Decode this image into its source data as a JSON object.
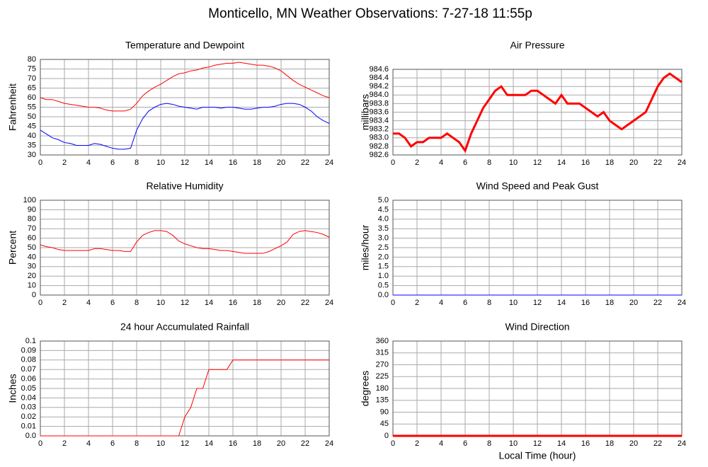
{
  "title": "Monticello, MN Weather Observations: 7-27-18 11:55p",
  "chart_data": [
    {
      "type": "line",
      "title": "Temperature and Dewpoint",
      "ylabel": "Fahrenheit",
      "x": [
        0,
        0.5,
        1,
        1.5,
        2,
        2.5,
        3,
        3.5,
        4,
        4.5,
        5,
        5.5,
        6,
        6.5,
        7,
        7.5,
        8,
        8.5,
        9,
        9.5,
        10,
        10.5,
        11,
        11.5,
        12,
        12.5,
        13,
        13.5,
        14,
        14.5,
        15,
        15.5,
        16,
        16.5,
        17,
        17.5,
        18,
        18.5,
        19,
        19.5,
        20,
        20.5,
        21,
        21.5,
        22,
        22.5,
        23,
        23.5,
        24
      ],
      "series": [
        {
          "color": "#ff0000",
          "values": [
            60,
            59,
            59,
            58,
            57,
            56.5,
            56,
            55.5,
            55,
            55,
            54.5,
            53.5,
            53,
            53,
            53,
            54,
            57,
            61,
            63.5,
            65.5,
            67,
            69,
            71,
            72.5,
            73,
            74,
            74.5,
            75.5,
            76,
            77,
            77.5,
            78,
            78,
            78.5,
            78,
            77.5,
            77,
            77,
            76.5,
            75.5,
            74,
            71.5,
            69,
            67,
            65.5,
            64,
            62.5,
            61,
            60
          ]
        },
        {
          "color": "#0000ff",
          "values": [
            43,
            41,
            39,
            38,
            36.5,
            36,
            35,
            35,
            35,
            36,
            35.5,
            34.5,
            33.5,
            33,
            33,
            33.5,
            43,
            49,
            53,
            55,
            56.5,
            57,
            56.5,
            55.5,
            55,
            54.5,
            54,
            55,
            55,
            55,
            54.5,
            55,
            55,
            54.5,
            54,
            54,
            54.5,
            55,
            55,
            55.5,
            56.5,
            57,
            57,
            56.5,
            55,
            53,
            50,
            48,
            46.5
          ]
        }
      ],
      "xlim": [
        0,
        24
      ],
      "xticks": [
        0,
        2,
        4,
        6,
        8,
        10,
        12,
        14,
        16,
        18,
        20,
        22,
        24
      ],
      "ylim": [
        30,
        80
      ],
      "yticks": [
        30,
        35,
        40,
        45,
        50,
        55,
        60,
        65,
        70,
        75,
        80
      ],
      "grid": true
    },
    {
      "type": "line",
      "title": "Air Pressure",
      "ylabel": "millibars",
      "x": [
        0,
        0.5,
        1,
        1.5,
        2,
        2.5,
        3,
        3.5,
        4,
        4.5,
        5,
        5.5,
        6,
        6.5,
        7,
        7.5,
        8,
        8.5,
        9,
        9.5,
        10,
        10.5,
        11,
        11.5,
        12,
        12.5,
        13,
        13.5,
        14,
        14.5,
        15,
        15.5,
        16,
        16.5,
        17,
        17.5,
        18,
        18.5,
        19,
        19.5,
        20,
        20.5,
        21,
        21.5,
        22,
        22.5,
        23,
        23.5,
        24
      ],
      "series": [
        {
          "color": "#ff0000",
          "values": [
            983.1,
            983.1,
            983.0,
            982.8,
            982.9,
            982.9,
            983.0,
            983.0,
            983.0,
            983.1,
            983.0,
            982.9,
            982.7,
            983.1,
            983.4,
            983.7,
            983.9,
            984.1,
            984.2,
            984.0,
            984.0,
            984.0,
            984.0,
            984.1,
            984.1,
            984.0,
            983.9,
            983.8,
            984.0,
            983.8,
            983.8,
            983.8,
            983.7,
            983.6,
            983.5,
            983.6,
            983.4,
            983.3,
            983.2,
            983.3,
            983.4,
            983.5,
            983.6,
            983.9,
            984.2,
            984.4,
            984.5,
            984.4,
            984.3
          ]
        }
      ],
      "xlim": [
        0,
        24
      ],
      "xticks": [
        0,
        2,
        4,
        6,
        8,
        10,
        12,
        14,
        16,
        18,
        20,
        22,
        24
      ],
      "ylim": [
        982.6,
        984.6
      ],
      "yticks": [
        982.6,
        982.8,
        {
          "value": 983,
          "label": "983.0"
        },
        983.2,
        983.4,
        983.6,
        983.8,
        {
          "value": 984,
          "label": "984.0"
        },
        984.2,
        984.4,
        984.6
      ],
      "grid": true
    },
    {
      "type": "line",
      "title": "Relative Humidity",
      "ylabel": "Percent",
      "x": [
        0,
        0.5,
        1,
        1.5,
        2,
        2.5,
        3,
        3.5,
        4,
        4.5,
        5,
        5.5,
        6,
        6.5,
        7,
        7.5,
        8,
        8.5,
        9,
        9.5,
        10,
        10.5,
        11,
        11.5,
        12,
        12.5,
        13,
        13.5,
        14,
        14.5,
        15,
        15.5,
        16,
        16.5,
        17,
        17.5,
        18,
        18.5,
        19,
        19.5,
        20,
        20.5,
        21,
        21.5,
        22,
        22.5,
        23,
        23.5,
        24
      ],
      "series": [
        {
          "color": "#ff0000",
          "values": [
            53,
            51,
            50,
            48,
            47,
            47,
            47,
            47,
            47,
            49,
            49,
            48,
            47,
            47,
            46,
            46,
            56,
            63,
            66,
            68,
            68,
            67,
            63,
            57,
            54,
            52,
            50,
            49,
            49,
            48,
            47,
            47,
            46,
            45,
            44,
            44,
            44,
            44,
            46,
            49,
            52,
            56,
            64,
            67,
            68,
            67,
            66,
            64,
            61
          ]
        }
      ],
      "xlim": [
        0,
        24
      ],
      "xticks": [
        0,
        2,
        4,
        6,
        8,
        10,
        12,
        14,
        16,
        18,
        20,
        22,
        24
      ],
      "ylim": [
        0,
        100
      ],
      "yticks": [
        0,
        10,
        20,
        30,
        40,
        50,
        60,
        70,
        80,
        90,
        100
      ],
      "grid": true
    },
    {
      "type": "line",
      "title": "Wind Speed and Peak Gust",
      "ylabel": "miles/hour",
      "x": [
        0,
        0.5,
        1,
        1.5,
        2,
        2.5,
        3,
        3.5,
        4,
        4.5,
        5,
        5.5,
        6,
        6.5,
        7,
        7.5,
        8,
        8.5,
        9,
        9.5,
        10,
        10.5,
        11,
        11.5,
        12,
        12.5,
        13,
        13.5,
        14,
        14.5,
        15,
        15.5,
        16,
        16.5,
        17,
        17.5,
        18,
        18.5,
        19,
        19.5,
        20,
        20.5,
        21,
        21.5,
        22,
        22.5,
        23,
        23.5,
        24
      ],
      "series": [
        {
          "color": "#ff0000",
          "values": [
            0,
            0,
            0,
            0,
            0,
            0,
            0,
            0,
            0,
            0,
            0,
            0,
            0,
            0,
            0,
            0,
            0,
            0,
            0,
            0,
            0,
            0,
            0,
            0,
            0,
            0,
            0,
            0,
            0,
            0,
            0,
            0,
            0,
            0,
            0,
            0,
            0,
            0,
            0,
            0,
            0,
            0,
            0,
            0,
            0,
            0,
            0,
            0,
            0
          ]
        },
        {
          "color": "#0000ff",
          "values": [
            0,
            0,
            0,
            0,
            0,
            0,
            0,
            0,
            0,
            0,
            0,
            0,
            0,
            0,
            0,
            0,
            0,
            0,
            0,
            0,
            0,
            0,
            0,
            0,
            0,
            0,
            0,
            0,
            0,
            0,
            0,
            0,
            0,
            0,
            0,
            0,
            0,
            0,
            0,
            0,
            0,
            0,
            0,
            0,
            0,
            0,
            0,
            0,
            0
          ]
        }
      ],
      "xlim": [
        0,
        24
      ],
      "xticks": [
        0,
        2,
        4,
        6,
        8,
        10,
        12,
        14,
        16,
        18,
        20,
        22,
        24
      ],
      "ylim": [
        0,
        5
      ],
      "yticks": [
        {
          "value": 0,
          "label": "0.0"
        },
        0.5,
        {
          "value": 1,
          "label": "1.0"
        },
        1.5,
        {
          "value": 2,
          "label": "2.0"
        },
        2.5,
        {
          "value": 3,
          "label": "3.0"
        },
        3.5,
        {
          "value": 4,
          "label": "4.0"
        },
        4.5,
        {
          "value": 5,
          "label": "5.0"
        }
      ],
      "grid": true
    },
    {
      "type": "line",
      "title": "24 hour Accumulated Rainfall",
      "ylabel": "Inches",
      "x": [
        0,
        0.5,
        1,
        1.5,
        2,
        2.5,
        3,
        3.5,
        4,
        4.5,
        5,
        5.5,
        6,
        6.5,
        7,
        7.5,
        8,
        8.5,
        9,
        9.5,
        10,
        10.5,
        11,
        11.5,
        12,
        12.5,
        13,
        13.5,
        14,
        14.5,
        15,
        15.5,
        16,
        16.5,
        17,
        17.5,
        18,
        18.5,
        19,
        19.5,
        20,
        20.5,
        21,
        21.5,
        22,
        22.5,
        23,
        23.5,
        24
      ],
      "series": [
        {
          "color": "#ff0000",
          "values": [
            0,
            0,
            0,
            0,
            0,
            0,
            0,
            0,
            0,
            0,
            0,
            0,
            0,
            0,
            0,
            0,
            0,
            0,
            0,
            0,
            0,
            0,
            0,
            0,
            0.02,
            0.03,
            0.05,
            0.05,
            0.07,
            0.07,
            0.07,
            0.07,
            0.08,
            0.08,
            0.08,
            0.08,
            0.08,
            0.08,
            0.08,
            0.08,
            0.08,
            0.08,
            0.08,
            0.08,
            0.08,
            0.08,
            0.08,
            0.08,
            0.08
          ]
        }
      ],
      "xlim": [
        0,
        24
      ],
      "xticks": [
        0,
        2,
        4,
        6,
        8,
        10,
        12,
        14,
        16,
        18,
        20,
        22,
        24
      ],
      "ylim": [
        0,
        0.1
      ],
      "yticks": [
        {
          "value": 0,
          "label": "0.0"
        },
        0.01,
        0.02,
        0.03,
        0.04,
        0.05,
        0.06,
        0.07,
        0.08,
        0.09,
        0.1
      ],
      "grid": true
    },
    {
      "type": "line",
      "title": "Wind Direction",
      "ylabel": "degrees",
      "xlabel": "Local Time (hour)",
      "x": [
        0,
        0.5,
        1,
        1.5,
        2,
        2.5,
        3,
        3.5,
        4,
        4.5,
        5,
        5.5,
        6,
        6.5,
        7,
        7.5,
        8,
        8.5,
        9,
        9.5,
        10,
        10.5,
        11,
        11.5,
        12,
        12.5,
        13,
        13.5,
        14,
        14.5,
        15,
        15.5,
        16,
        16.5,
        17,
        17.5,
        18,
        18.5,
        19,
        19.5,
        20,
        20.5,
        21,
        21.5,
        22,
        22.5,
        23,
        23.5,
        24
      ],
      "series": [
        {
          "color": "#ff0000",
          "values": [
            0,
            0,
            0,
            0,
            0,
            0,
            0,
            0,
            0,
            0,
            0,
            0,
            0,
            0,
            0,
            0,
            0,
            0,
            0,
            0,
            0,
            0,
            0,
            0,
            0,
            0,
            0,
            0,
            0,
            0,
            0,
            0,
            0,
            0,
            0,
            0,
            0,
            0,
            0,
            0,
            0,
            0,
            0,
            0,
            0,
            0,
            0,
            0,
            0
          ]
        }
      ],
      "xlim": [
        0,
        24
      ],
      "xticks": [
        0,
        2,
        4,
        6,
        8,
        10,
        12,
        14,
        16,
        18,
        20,
        22,
        24
      ],
      "ylim": [
        0,
        360
      ],
      "yticks": [
        0,
        45,
        90,
        135,
        180,
        225,
        270,
        315,
        360
      ],
      "grid": true
    }
  ]
}
